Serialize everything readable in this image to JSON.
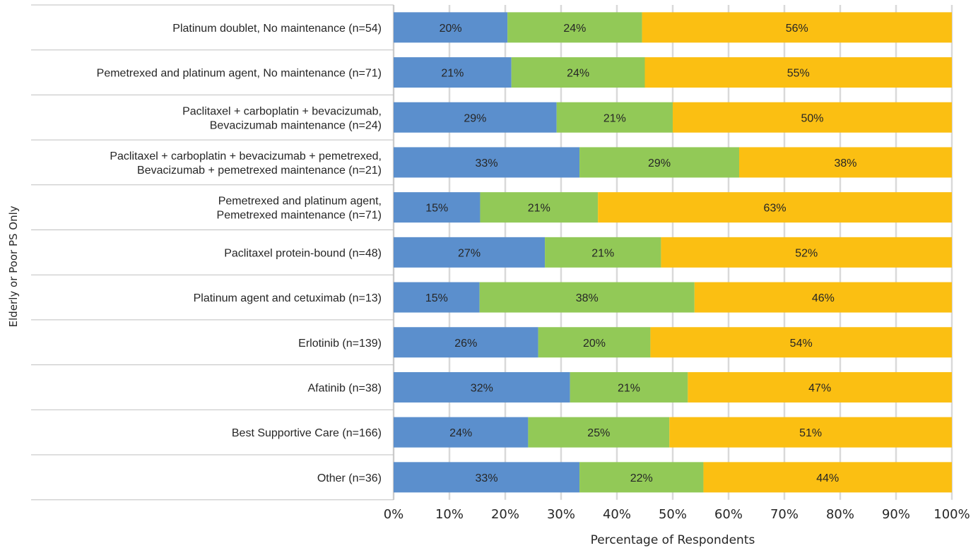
{
  "chart_data": {
    "type": "bar",
    "orientation": "horizontal",
    "stacked": true,
    "group_label": "Elderly or Poor PS Only",
    "xlabel": "Percentage of Respondents",
    "xlim": [
      0,
      100
    ],
    "x_ticks": [
      "0%",
      "10%",
      "20%",
      "30%",
      "40%",
      "50%",
      "60%",
      "70%",
      "80%",
      "90%",
      "100%"
    ],
    "grid": true,
    "legend": "none",
    "categories": [
      [
        "Platinum doublet, No maintenance (n=54)"
      ],
      [
        "Pemetrexed and platinum agent, No maintenance (n=71)"
      ],
      [
        "Paclitaxel + carboplatin + bevacizumab,",
        "Bevacizumab maintenance (n=24)"
      ],
      [
        "Paclitaxel + carboplatin + bevacizumab + pemetrexed,",
        "Bevacizumab + pemetrexed maintenance (n=21)"
      ],
      [
        "Pemetrexed and platinum agent,",
        "Pemetrexed maintenance (n=71)"
      ],
      [
        "Paclitaxel protein-bound (n=48)"
      ],
      [
        "Platinum agent and cetuximab (n=13)"
      ],
      [
        "Erlotinib (n=139)"
      ],
      [
        "Afatinib (n=38)"
      ],
      [
        "Best Supportive Care (n=166)"
      ],
      [
        "Other (n=36)"
      ]
    ],
    "series": [
      {
        "color": "#5b8fcd",
        "values": [
          20.4,
          21.1,
          29.2,
          33.3,
          15.5,
          27.1,
          15.4,
          25.9,
          31.6,
          24.1,
          33.3
        ],
        "labels": [
          "20%",
          "21%",
          "29%",
          "33%",
          "15%",
          "27%",
          "15%",
          "26%",
          "32%",
          "24%",
          "33%"
        ]
      },
      {
        "color": "#92c957",
        "values": [
          24.1,
          23.9,
          20.8,
          28.6,
          21.1,
          20.8,
          38.5,
          20.1,
          21.1,
          25.3,
          22.2
        ],
        "labels": [
          "24%",
          "24%",
          "21%",
          "29%",
          "21%",
          "21%",
          "38%",
          "20%",
          "21%",
          "25%",
          "22%"
        ]
      },
      {
        "color": "#fbbf12",
        "values": [
          55.5,
          55.0,
          50.0,
          38.1,
          63.4,
          52.1,
          46.1,
          54.0,
          47.3,
          50.6,
          44.5
        ],
        "labels": [
          "56%",
          "55%",
          "50%",
          "38%",
          "63%",
          "52%",
          "46%",
          "54%",
          "47%",
          "51%",
          "44%"
        ]
      }
    ]
  }
}
